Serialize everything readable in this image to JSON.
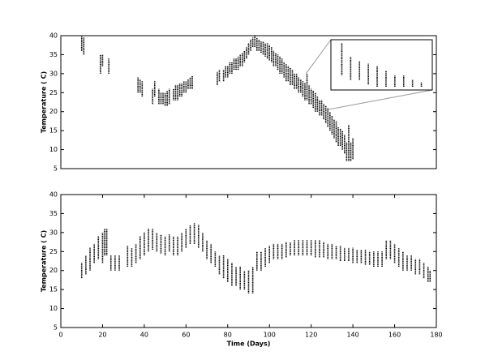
{
  "chart_data": [
    {
      "type": "range",
      "ylabel": "Temperature ( C)",
      "xlim": [
        0,
        180
      ],
      "ylim": [
        5,
        40
      ],
      "yticks": [
        5,
        10,
        15,
        20,
        25,
        30,
        35,
        40
      ],
      "color": "#000000",
      "inset": {
        "xlim": [
          117.5,
          127.5
        ],
        "ylim": [
          20.5,
          30
        ]
      },
      "x": [
        10,
        11,
        19,
        20,
        23,
        37,
        38,
        39,
        44,
        45,
        47,
        48,
        49,
        50,
        51,
        52,
        54,
        55,
        56,
        57,
        58,
        59,
        60,
        61,
        62,
        63,
        75,
        76,
        78,
        79,
        80,
        81,
        82,
        83,
        84,
        85,
        86,
        87,
        88,
        89,
        90,
        91,
        92,
        93,
        94,
        95,
        96,
        97,
        98,
        99,
        100,
        101,
        102,
        103,
        104,
        105,
        106,
        107,
        108,
        109,
        110,
        111,
        112,
        113,
        114,
        115,
        116,
        117,
        118,
        119,
        120,
        121,
        122,
        123,
        124,
        125,
        126,
        127,
        128,
        129,
        130,
        131,
        132,
        133,
        134,
        135,
        136,
        137,
        138,
        139,
        140
      ],
      "y_min": [
        36,
        35,
        30,
        32,
        30,
        25,
        25,
        24,
        22,
        24,
        22,
        22,
        22,
        21.5,
        21.5,
        22,
        23,
        23,
        23,
        24,
        24,
        25,
        25,
        26,
        26,
        26,
        27,
        28,
        28,
        29,
        29,
        30,
        30,
        31,
        31,
        31,
        32,
        32,
        33,
        34,
        35,
        36,
        37,
        37,
        36,
        36,
        35.5,
        35,
        34.5,
        34,
        33.5,
        33,
        32,
        32,
        31,
        30,
        30,
        29,
        28,
        28,
        27,
        27,
        26,
        26,
        25,
        25,
        24,
        23,
        23,
        22,
        22,
        21,
        20,
        20,
        19,
        19,
        18,
        17,
        16,
        15,
        14,
        13,
        12,
        11,
        11,
        10,
        9,
        7,
        7,
        7,
        7.5
      ],
      "y_max": [
        40,
        39.5,
        35,
        35,
        34,
        29,
        28.5,
        28,
        26,
        28,
        26,
        25,
        25,
        25,
        25.5,
        26,
        26,
        27,
        27,
        27.5,
        27.5,
        28,
        28,
        28.5,
        29,
        29.5,
        30.5,
        31,
        31,
        32,
        32,
        33,
        33,
        34,
        34,
        34.5,
        35,
        35.5,
        36,
        37,
        38,
        39,
        39.5,
        40,
        39.5,
        39,
        38.5,
        38.5,
        38,
        38,
        37.5,
        37,
        36,
        35.5,
        35,
        34.5,
        34,
        33,
        32.5,
        32,
        31.5,
        31,
        30,
        30,
        29,
        28.5,
        28,
        27.5,
        30,
        27,
        26,
        25.5,
        25,
        24,
        23,
        23,
        22,
        21.5,
        21,
        20,
        19,
        18,
        17.5,
        16,
        15.5,
        15,
        14,
        12,
        16.5,
        12,
        13
      ]
    },
    {
      "type": "range",
      "xlabel": "Time (Days)",
      "ylabel": "Temperature ( C)",
      "xlim": [
        0,
        180
      ],
      "ylim": [
        5,
        40
      ],
      "xticks": [
        0,
        20,
        40,
        60,
        80,
        100,
        120,
        140,
        160,
        180
      ],
      "yticks": [
        5,
        10,
        15,
        20,
        25,
        30,
        35,
        40
      ],
      "color": "#000000",
      "x": [
        10,
        12,
        14,
        16,
        18,
        20,
        21,
        22,
        24,
        26,
        28,
        32,
        34,
        36,
        38,
        40,
        42,
        44,
        46,
        48,
        50,
        52,
        54,
        56,
        58,
        60,
        62,
        64,
        66,
        68,
        70,
        72,
        74,
        76,
        78,
        80,
        82,
        84,
        86,
        88,
        90,
        92,
        94,
        96,
        98,
        100,
        102,
        104,
        106,
        108,
        110,
        112,
        114,
        116,
        118,
        120,
        122,
        124,
        126,
        128,
        130,
        132,
        134,
        136,
        138,
        140,
        142,
        144,
        146,
        148,
        150,
        152,
        154,
        156,
        158,
        160,
        162,
        164,
        166,
        168,
        170,
        172,
        174,
        176,
        177
      ],
      "y_min": [
        18,
        19,
        20,
        22,
        23,
        22,
        24,
        24,
        20,
        20,
        20,
        21,
        21,
        22,
        23,
        24,
        25,
        25.5,
        25,
        24.5,
        24,
        25,
        24,
        24,
        25,
        26,
        27,
        27,
        26,
        25,
        23,
        22,
        21,
        19,
        18,
        17,
        16,
        16,
        15,
        15,
        14,
        14,
        20,
        20,
        21,
        22,
        23,
        23,
        23,
        23.5,
        24,
        24,
        24,
        24,
        24,
        24,
        23.5,
        23.5,
        23.5,
        23,
        23,
        23,
        22.5,
        22.5,
        22.5,
        22,
        22,
        22,
        21.5,
        21.5,
        21,
        21,
        21,
        23,
        23,
        22,
        21,
        20,
        20,
        20,
        19,
        19,
        18,
        17,
        17
      ],
      "y_max": [
        22,
        24,
        26,
        27,
        29,
        30,
        31,
        31,
        24,
        24,
        24,
        26.5,
        26,
        27,
        29,
        30,
        31,
        31,
        30,
        29.5,
        29,
        29.5,
        29,
        29,
        30,
        31,
        32,
        32.5,
        32,
        30,
        28,
        27,
        25,
        24,
        24,
        23,
        22,
        21,
        21,
        20,
        20,
        21,
        25,
        25,
        26,
        26.5,
        27,
        27,
        27,
        27.5,
        27.5,
        28,
        28,
        28,
        28,
        28,
        28,
        28,
        27.5,
        27,
        27,
        26.5,
        26.5,
        26,
        26,
        26,
        25.5,
        25.5,
        25.5,
        25,
        25,
        25,
        25,
        28,
        28,
        27,
        26,
        25,
        24,
        24,
        23,
        23,
        22,
        21,
        20
      ]
    }
  ]
}
